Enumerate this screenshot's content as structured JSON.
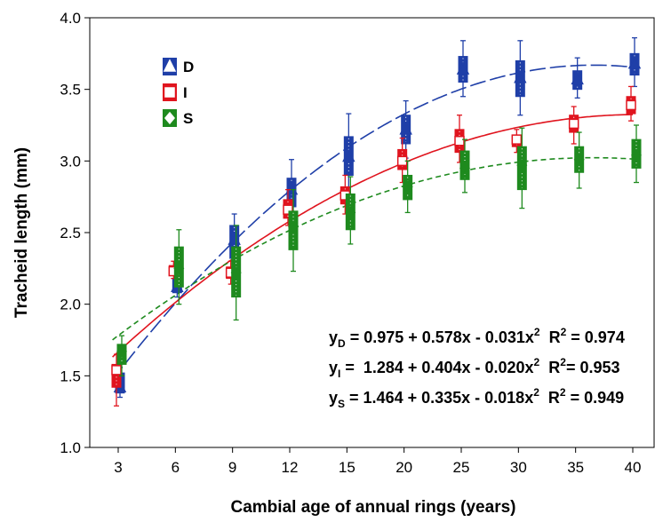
{
  "chart_data": {
    "type": "box",
    "ylabel": "Tracheid length (mm)",
    "xlabel": "Cambial age of annual rings (years)",
    "categories": [
      "3",
      "6",
      "9",
      "12",
      "15",
      "20",
      "25",
      "30",
      "35",
      "40"
    ],
    "ylim": [
      1.0,
      4.0
    ],
    "yticks": [
      {
        "value": 1.0,
        "label": "1.0"
      },
      {
        "value": 1.5,
        "label": "1.5"
      },
      {
        "value": 2.0,
        "label": "2.0"
      },
      {
        "value": 2.5,
        "label": "2.5"
      },
      {
        "value": 3.0,
        "label": "3.0"
      },
      {
        "value": 3.5,
        "label": "3.5"
      },
      {
        "value": 4.0,
        "label": "4.0"
      }
    ],
    "series": [
      {
        "name": "D",
        "color": "#1f3fa8",
        "marker": "triangle",
        "line": "longdash",
        "mean": [
          1.42,
          2.12,
          2.45,
          2.8,
          3.03,
          3.22,
          3.64,
          3.58,
          3.57,
          3.68
        ],
        "box_low": [
          1.38,
          2.08,
          2.32,
          2.68,
          2.9,
          3.12,
          3.55,
          3.45,
          3.5,
          3.6
        ],
        "box_high": [
          1.52,
          2.18,
          2.55,
          2.88,
          3.17,
          3.32,
          3.73,
          3.7,
          3.63,
          3.75
        ],
        "whisker_low": [
          1.35,
          2.05,
          2.22,
          2.55,
          2.77,
          3.02,
          3.45,
          3.32,
          3.44,
          3.52
        ],
        "whisker_high": [
          1.56,
          2.22,
          2.63,
          3.01,
          3.33,
          3.42,
          3.84,
          3.84,
          3.72,
          3.86
        ],
        "fit": [
          0.975,
          0.578,
          -0.031
        ],
        "equation": {
          "y": "y",
          "sub": "D",
          "rhs": " = 0.975 + 0.578x - 0.031x",
          "pow": "2",
          "r": "  R",
          "rpow": "2",
          "rrhs": " = 0.974"
        }
      },
      {
        "name": "I",
        "color": "#e0141e",
        "marker": "square",
        "line": "solid",
        "mean": [
          1.54,
          2.23,
          2.22,
          2.66,
          2.76,
          3.0,
          3.14,
          3.15,
          3.26,
          3.39
        ],
        "box_low": [
          1.42,
          2.2,
          2.18,
          2.6,
          2.7,
          2.94,
          3.06,
          3.1,
          3.2,
          3.33
        ],
        "box_high": [
          1.58,
          2.27,
          2.26,
          2.73,
          2.82,
          3.08,
          3.22,
          3.18,
          3.32,
          3.45
        ],
        "whisker_low": [
          1.29,
          2.18,
          2.14,
          2.55,
          2.63,
          2.85,
          2.99,
          3.06,
          3.12,
          3.28
        ],
        "whisker_high": [
          1.65,
          2.3,
          2.3,
          2.8,
          2.9,
          3.16,
          3.32,
          3.22,
          3.38,
          3.52
        ],
        "fit": [
          1.284,
          0.404,
          -0.02
        ],
        "equation": {
          "y": "y",
          "sub": "I",
          "rhs": " =  1.284 + 0.404x - 0.020x",
          "pow": "2",
          "r": "  R",
          "rpow": "2",
          "rrhs": "= 0.953"
        }
      },
      {
        "name": "S",
        "color": "#1e8a1e",
        "marker": "diamond",
        "line": "shortdash",
        "mean": [
          1.67,
          2.25,
          2.22,
          2.54,
          2.64,
          2.82,
          2.95,
          2.97,
          3.01,
          3.04
        ],
        "box_low": [
          1.58,
          2.12,
          2.05,
          2.38,
          2.52,
          2.73,
          2.87,
          2.8,
          2.92,
          2.95
        ],
        "box_high": [
          1.72,
          2.4,
          2.4,
          2.65,
          2.77,
          2.9,
          3.07,
          3.1,
          3.1,
          3.15
        ],
        "whisker_low": [
          1.5,
          2.0,
          1.89,
          2.23,
          2.42,
          2.64,
          2.78,
          2.67,
          2.81,
          2.85
        ],
        "whisker_high": [
          1.78,
          2.52,
          2.55,
          2.8,
          2.89,
          3.0,
          3.15,
          3.23,
          3.2,
          3.25
        ],
        "fit": [
          1.464,
          0.335,
          -0.018
        ],
        "equation": {
          "y": "y",
          "sub": "S",
          "rhs": " = 1.464 + 0.335x - 0.018x",
          "pow": "2",
          "r": "  R",
          "rpow": "2",
          "rrhs": " = 0.949"
        }
      }
    ]
  }
}
